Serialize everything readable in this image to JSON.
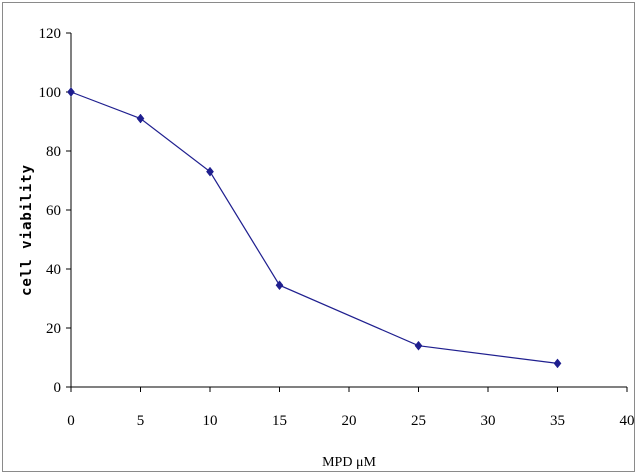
{
  "chart_data": {
    "type": "line",
    "title": "",
    "xlabel": "MPD μM",
    "ylabel": "cell viability",
    "xlim": [
      0,
      40
    ],
    "ylim": [
      0,
      120
    ],
    "x_ticks": [
      "0",
      "5",
      "10",
      "15",
      "20",
      "25",
      "30",
      "35",
      "40"
    ],
    "y_ticks": [
      "0",
      "20",
      "40",
      "60",
      "80",
      "100",
      "120"
    ],
    "grid": false,
    "legend": "none",
    "series": [
      {
        "x": [
          0,
          5,
          10,
          15,
          25,
          35
        ],
        "y": [
          100,
          91,
          73,
          34.5,
          14,
          8
        ],
        "color": "#1f1f8f",
        "marker": "diamond"
      }
    ]
  }
}
